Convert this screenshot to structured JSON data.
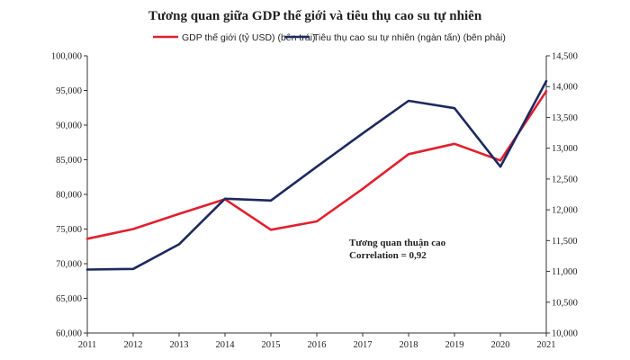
{
  "chart_data": {
    "type": "line",
    "title": "Tương quan giữa GDP thế giới và tiêu thụ cao su tự nhiên",
    "x": [
      "2011",
      "2012",
      "2013",
      "2014",
      "2015",
      "2016",
      "2017",
      "2018",
      "2019",
      "2020",
      "2021"
    ],
    "series": [
      {
        "name": "GDP thế giới (tỷ USD) (bên trái)",
        "axis": "left",
        "color": "#e0202f",
        "values": [
          73600,
          75000,
          77200,
          79300,
          74900,
          76100,
          80800,
          85800,
          87300,
          84900,
          94900
        ]
      },
      {
        "name": "Tiêu thụ cao su tự nhiên (ngàn tấn) (bên phải)",
        "axis": "right",
        "color": "#1c2a5e",
        "values": [
          11030,
          11040,
          11440,
          12180,
          12150,
          12700,
          13240,
          13770,
          13650,
          12700,
          14090
        ]
      }
    ],
    "left_axis": {
      "min": 60000,
      "max": 100000,
      "step": 5000,
      "tick_labels": [
        "60,000",
        "65,000",
        "70,000",
        "75,000",
        "80,000",
        "85,000",
        "90,000",
        "95,000",
        "100,000"
      ]
    },
    "right_axis": {
      "min": 10000,
      "max": 14500,
      "step": 500,
      "tick_labels": [
        "10,000",
        "10,500",
        "11,000",
        "11,500",
        "12,000",
        "12,500",
        "13,000",
        "13,500",
        "14,000",
        "14,500"
      ]
    },
    "annotation": [
      "Tương quan thuận cao",
      "Correlation = 0,92"
    ],
    "legend_position": "top",
    "grid": false
  }
}
